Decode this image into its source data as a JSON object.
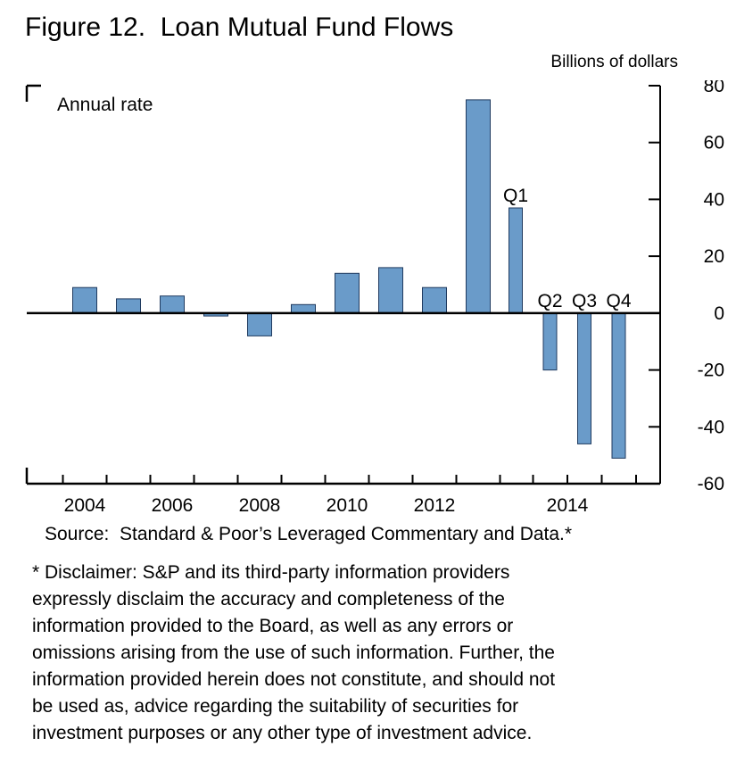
{
  "figure": {
    "title": "Figure 12.  Loan Mutual Fund Flows",
    "units_label": "Billions of dollars",
    "source": "Source:  Standard & Poor’s Leveraged Commentary and Data.*",
    "disclaimer_lines": [
      "* Disclaimer: S&P and its third-party information providers",
      "expressly disclaim the accuracy and completeness of the",
      "information provided to the Board, as well as any errors or",
      "omissions arising from the use of such information. Further, the",
      "information provided herein does not constitute, and should not",
      "be used as, advice regarding the suitability of securities for",
      "investment purposes or any other type of investment advice."
    ]
  },
  "chart_data": {
    "type": "bar",
    "title": "Loan Mutual Fund Flows",
    "annotation": "Annual rate",
    "ylabel": "Billions of dollars",
    "ylim": [
      -60,
      80
    ],
    "ytick_interval": 20,
    "yticks": [
      80,
      60,
      40,
      20,
      0,
      -20,
      -40,
      -60
    ],
    "yaxis_side": "right",
    "grid": false,
    "xtick_labels": [
      "2004",
      "2006",
      "2008",
      "2010",
      "2012",
      "2014"
    ],
    "bars": [
      {
        "label": "2004",
        "value": 9,
        "period": "annual"
      },
      {
        "label": "2005",
        "value": 5,
        "period": "annual"
      },
      {
        "label": "2006",
        "value": 6,
        "period": "annual"
      },
      {
        "label": "2007",
        "value": -1,
        "period": "annual"
      },
      {
        "label": "2008",
        "value": -8,
        "period": "annual"
      },
      {
        "label": "2009",
        "value": 3,
        "period": "annual"
      },
      {
        "label": "2010",
        "value": 14,
        "period": "annual"
      },
      {
        "label": "2011",
        "value": 16,
        "period": "annual"
      },
      {
        "label": "2012",
        "value": 9,
        "period": "annual"
      },
      {
        "label": "2013",
        "value": 75,
        "period": "annual"
      },
      {
        "label": "2014 Q1",
        "value": 37,
        "period": "quarter",
        "bar_label": "Q1"
      },
      {
        "label": "2014 Q2",
        "value": -20,
        "period": "quarter",
        "bar_label": "Q2"
      },
      {
        "label": "2014 Q3",
        "value": -46,
        "period": "quarter",
        "bar_label": "Q3"
      },
      {
        "label": "2014 Q4",
        "value": -51,
        "period": "quarter",
        "bar_label": "Q4"
      }
    ],
    "bar_color": "#6a9bc9",
    "bar_border_color": "#1f3a5f"
  }
}
